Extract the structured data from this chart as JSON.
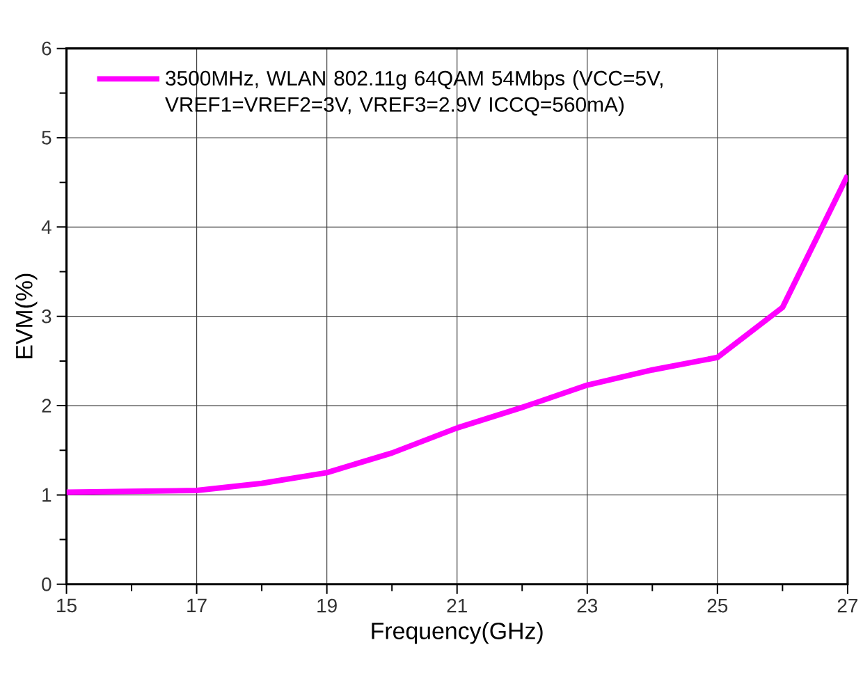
{
  "chart_data": {
    "type": "line",
    "xlabel": "Frequency(GHz)",
    "ylabel": "EVM(%)",
    "x": [
      15,
      16,
      17,
      18,
      19,
      20,
      21,
      22,
      23,
      24,
      25,
      26,
      27
    ],
    "series": [
      {
        "name": "3500MHz, WLAN 802.11g 64QAM 54Mbps (VCC=5V, VREF1=VREF2=3V, VREF3=2.9V ICCQ=560mA)",
        "color": "#ff00ff",
        "values": [
          1.03,
          1.04,
          1.05,
          1.13,
          1.25,
          1.47,
          1.75,
          1.98,
          2.23,
          2.4,
          2.54,
          3.1,
          4.58
        ]
      }
    ],
    "xlim": [
      15,
      27
    ],
    "ylim": [
      0,
      6
    ],
    "xticks": [
      15,
      17,
      19,
      21,
      23,
      25,
      27
    ],
    "yticks": [
      0,
      1,
      2,
      3,
      4,
      5,
      6
    ],
    "grid": true,
    "legend": "top left",
    "marker": "none",
    "line_style": "solid"
  }
}
